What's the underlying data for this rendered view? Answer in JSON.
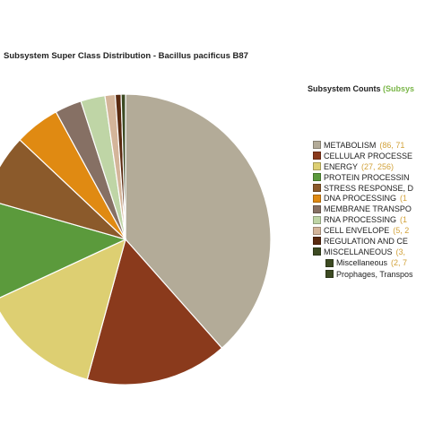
{
  "chart_data": {
    "type": "pie",
    "title": "Subsystem Super Class Distribution - Bacillus pacificus B87",
    "legend_title": "Subsystem Counts",
    "legend_title_suffix": "(Subsys",
    "legend_position": "right",
    "slices": [
      {
        "label": "METABOLISM",
        "counts_text": "(86, 71",
        "value": 711,
        "color": "#b3ab98"
      },
      {
        "label": "CELLULAR PROCESSE",
        "counts_text": "",
        "value": 292,
        "color": "#8a3a1c"
      },
      {
        "label": "ENERGY",
        "counts_text": "(27, 256)",
        "value": 256,
        "color": "#ddcf72"
      },
      {
        "label": "PROTEIN PROCESSIN",
        "counts_text": "",
        "value": 210,
        "color": "#5b9a3c"
      },
      {
        "label": "STRESS RESPONSE, D",
        "counts_text": "",
        "value": 140,
        "color": "#8b5a2b"
      },
      {
        "label": "DNA PROCESSING",
        "counts_text": "(1",
        "value": 93,
        "color": "#e08a12"
      },
      {
        "label": "MEMBRANE TRANSPO",
        "counts_text": "",
        "value": 55,
        "color": "#867064"
      },
      {
        "label": "RNA PROCESSING",
        "counts_text": "(1",
        "value": 50,
        "color": "#bfd5a6"
      },
      {
        "label": "CELL ENVELOPE",
        "counts_text": "(5, 2",
        "value": 21,
        "color": "#d4b59a"
      },
      {
        "label": "REGULATION AND CE",
        "counts_text": "",
        "value": 12,
        "color": "#5a2a10"
      },
      {
        "label": "MISCELLANEOUS",
        "counts_text": "(3,",
        "value": 9,
        "color": "#3c4a22"
      }
    ],
    "sub_items": [
      {
        "label": "Miscellaneous",
        "counts_text": "(2, 7",
        "color": "#3c4a22"
      },
      {
        "label": "Prophages, Transpos",
        "counts_text": "",
        "color": "#3c4a22"
      }
    ]
  }
}
